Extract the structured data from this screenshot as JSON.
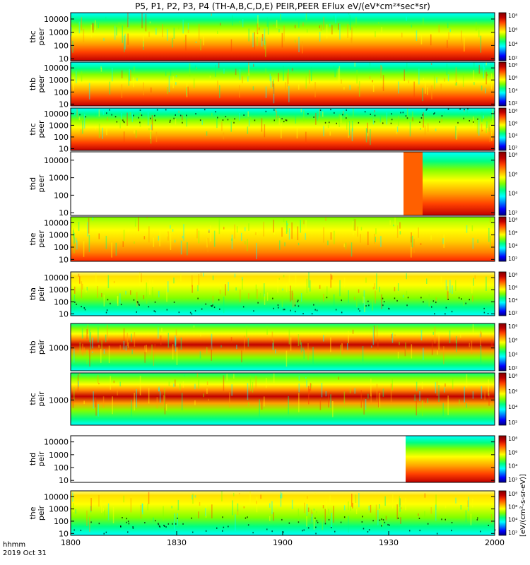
{
  "title": "P5, P1, P2, P3, P4 (TH-A,B,C,D,E) PEIR,PEER EFlux eV/(eV*cm²*sec*sr)",
  "time_axis": {
    "label_line1": "hhmm",
    "label_line2": "2019 Oct 31",
    "ticks": [
      "1800",
      "1830",
      "1900",
      "1930",
      "2000"
    ]
  },
  "colorbar": {
    "unit_label": "[eV/(cm²-s-sr-eV)]",
    "tick_labels": [
      "10⁸",
      "10⁶",
      "10⁴",
      "10²"
    ]
  },
  "colors": {
    "palette": [
      "#000080",
      "#0000ff",
      "#0080ff",
      "#00ffff",
      "#00ff80",
      "#80ff00",
      "#ffff00",
      "#ffa000",
      "#ff4000",
      "#c00000",
      "#800000"
    ],
    "frame": "#000000"
  },
  "chart_data": [
    {
      "type": "heatmap",
      "ylabel": "thc\npeer",
      "yscale": "log",
      "ylim": [
        7,
        30000
      ],
      "yticks": [
        "10000",
        "1000",
        "100",
        "10"
      ]
    },
    {
      "type": "heatmap",
      "ylabel": "thb\npeer",
      "yscale": "log",
      "ylim": [
        7,
        30000
      ],
      "yticks": [
        "10000",
        "1000",
        "100",
        "10"
      ]
    },
    {
      "type": "heatmap",
      "ylabel": "thc\npeer",
      "yscale": "log",
      "ylim": [
        7,
        30000
      ],
      "yticks": [
        "10000",
        "1000",
        "100",
        "10"
      ]
    },
    {
      "type": "heatmap",
      "ylabel": "thd\npeer",
      "yscale": "log",
      "ylim": [
        7,
        30000
      ],
      "yticks": [
        "10000",
        "1000",
        "100",
        "10"
      ]
    },
    {
      "type": "heatmap",
      "ylabel": "the\npeer",
      "yscale": "log",
      "ylim": [
        7,
        30000
      ],
      "yticks": [
        "10000",
        "1000",
        "100",
        "10"
      ]
    },
    {
      "type": "heatmap",
      "ylabel": "tha\npeir",
      "yscale": "log",
      "ylim": [
        7,
        30000
      ],
      "yticks": [
        "10000",
        "1000",
        "100",
        "10"
      ]
    },
    {
      "type": "heatmap",
      "ylabel": "thb\npeir",
      "yscale": "log",
      "ylim": [
        50,
        25000
      ],
      "yticks": [
        "1000"
      ]
    },
    {
      "type": "heatmap",
      "ylabel": "thc\npeir",
      "yscale": "log",
      "ylim": [
        50,
        25000
      ],
      "yticks": [
        "1000"
      ]
    },
    {
      "type": "heatmap",
      "ylabel": "thd\npeir",
      "yscale": "log",
      "ylim": [
        7,
        30000
      ],
      "yticks": [
        "10000",
        "1000",
        "100",
        "10"
      ]
    },
    {
      "type": "heatmap",
      "ylabel": "the\npeir",
      "yscale": "log",
      "ylim": [
        7,
        30000
      ],
      "yticks": [
        "10000",
        "1000",
        "100",
        "10"
      ]
    }
  ]
}
